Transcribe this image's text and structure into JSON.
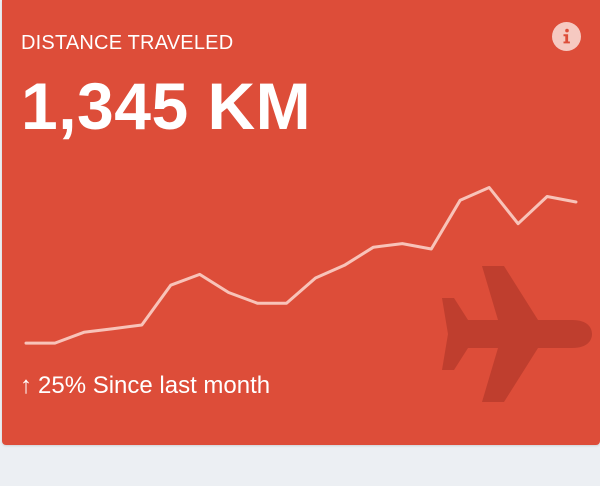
{
  "widget": {
    "title": "DISTANCE TRAVELED",
    "value": "1,345 KM",
    "trend_arrow": "↑",
    "trend_text": "25% Since last month",
    "info_icon": "info-icon",
    "background_icon": "airplane-icon"
  },
  "colors": {
    "card_background": "#dd4d39",
    "sparkline": "#f8c3b9",
    "plane_watermark": "#bf3e2e",
    "page_background": "#eceff3"
  },
  "sparkline": {
    "values": [
      6,
      6,
      12,
      14,
      16,
      38,
      44,
      34,
      28,
      28,
      42,
      49,
      59,
      61,
      58,
      85,
      92,
      72,
      87,
      84
    ]
  }
}
